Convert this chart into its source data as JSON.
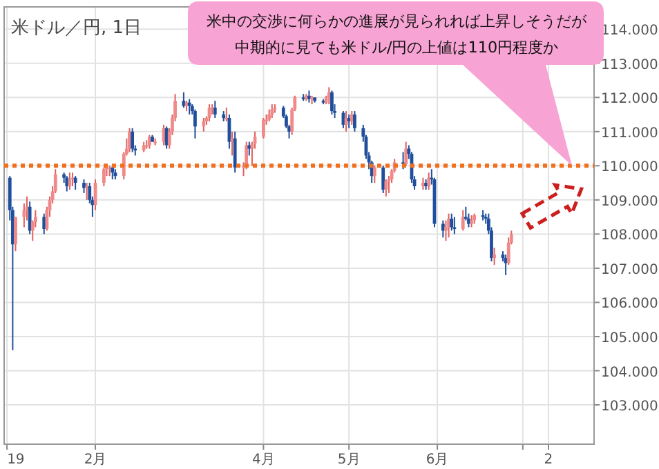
{
  "chart_data": {
    "type": "candlestick",
    "title": "米ドル／円, 1日",
    "annotations": [
      "米中の交渉に何らかの進展が見られれば上昇しそうだが",
      "中期的に見ても米ドル/円の上値は110円程度か"
    ],
    "xlim": [
      "2018-12-31",
      "2019-07-26"
    ],
    "xticks": [
      {
        "value": "2019-01-01",
        "label": "19"
      },
      {
        "value": "2019-02-01",
        "label": "2月"
      },
      {
        "value": "2019-04-01",
        "label": "4月"
      },
      {
        "value": "2019-05-01",
        "label": "5月"
      },
      {
        "value": "2019-06-01",
        "label": "6月"
      },
      {
        "value": "2019-07-01",
        "label": null
      },
      {
        "value": "2019-07-10",
        "label": "2"
      }
    ],
    "ylim": [
      101.85,
      114.65
    ],
    "yticks": [
      {
        "value": 103,
        "label": "103.000"
      },
      {
        "value": 104,
        "label": "104.000"
      },
      {
        "value": 105,
        "label": "105.000"
      },
      {
        "value": 106,
        "label": "106.000"
      },
      {
        "value": 107,
        "label": "107.000"
      },
      {
        "value": 108,
        "label": "108.000"
      },
      {
        "value": 109,
        "label": "109.000"
      },
      {
        "value": 110,
        "label": "110.000"
      },
      {
        "value": 111,
        "label": "111.000"
      },
      {
        "value": 112,
        "label": "112.000"
      },
      {
        "value": 113,
        "label": "113.000"
      },
      {
        "value": 114,
        "label": "114.000"
      }
    ],
    "grid": true,
    "ref_lines": [
      {
        "axis": "y",
        "value": 110,
        "color": "#f07020",
        "line_style": "dotted"
      }
    ],
    "x": [
      "2019-01-02",
      "2019-01-03",
      "2019-01-04",
      "2019-01-07",
      "2019-01-08",
      "2019-01-09",
      "2019-01-10",
      "2019-01-11",
      "2019-01-14",
      "2019-01-15",
      "2019-01-16",
      "2019-01-17",
      "2019-01-18",
      "2019-01-21",
      "2019-01-22",
      "2019-01-23",
      "2019-01-24",
      "2019-01-25",
      "2019-01-28",
      "2019-01-29",
      "2019-01-30",
      "2019-01-31",
      "2019-02-01",
      "2019-02-04",
      "2019-02-05",
      "2019-02-06",
      "2019-02-07",
      "2019-02-08",
      "2019-02-11",
      "2019-02-12",
      "2019-02-13",
      "2019-02-14",
      "2019-02-15",
      "2019-02-18",
      "2019-02-19",
      "2019-02-20",
      "2019-02-21",
      "2019-02-22",
      "2019-02-25",
      "2019-02-26",
      "2019-02-27",
      "2019-02-28",
      "2019-03-01",
      "2019-03-04",
      "2019-03-05",
      "2019-03-06",
      "2019-03-07",
      "2019-03-08",
      "2019-03-11",
      "2019-03-12",
      "2019-03-13",
      "2019-03-14",
      "2019-03-15",
      "2019-03-18",
      "2019-03-19",
      "2019-03-20",
      "2019-03-21",
      "2019-03-22",
      "2019-03-25",
      "2019-03-26",
      "2019-03-27",
      "2019-03-28",
      "2019-03-29",
      "2019-04-01",
      "2019-04-02",
      "2019-04-03",
      "2019-04-04",
      "2019-04-05",
      "2019-04-08",
      "2019-04-09",
      "2019-04-10",
      "2019-04-11",
      "2019-04-12",
      "2019-04-15",
      "2019-04-16",
      "2019-04-17",
      "2019-04-18",
      "2019-04-19",
      "2019-04-22",
      "2019-04-23",
      "2019-04-24",
      "2019-04-25",
      "2019-04-26",
      "2019-04-29",
      "2019-04-30",
      "2019-05-01",
      "2019-05-02",
      "2019-05-03",
      "2019-05-06",
      "2019-05-07",
      "2019-05-08",
      "2019-05-09",
      "2019-05-10",
      "2019-05-13",
      "2019-05-14",
      "2019-05-15",
      "2019-05-16",
      "2019-05-17",
      "2019-05-20",
      "2019-05-21",
      "2019-05-22",
      "2019-05-23",
      "2019-05-24",
      "2019-05-27",
      "2019-05-28",
      "2019-05-29",
      "2019-05-30",
      "2019-05-31",
      "2019-06-03",
      "2019-06-04",
      "2019-06-05",
      "2019-06-06",
      "2019-06-07",
      "2019-06-10",
      "2019-06-11",
      "2019-06-12",
      "2019-06-13",
      "2019-06-14",
      "2019-06-17",
      "2019-06-18",
      "2019-06-19",
      "2019-06-20",
      "2019-06-21",
      "2019-06-24",
      "2019-06-25",
      "2019-06-26",
      "2019-06-27"
    ],
    "ohlc": [
      [
        109.65,
        109.7,
        108.4,
        108.7
      ],
      [
        108.7,
        108.8,
        104.6,
        107.7
      ],
      [
        107.7,
        108.5,
        107.5,
        108.5
      ],
      [
        108.5,
        108.9,
        108.2,
        108.7
      ],
      [
        108.7,
        109.1,
        108.4,
        108.8
      ],
      [
        108.8,
        108.95,
        108.0,
        108.1
      ],
      [
        108.1,
        108.4,
        107.8,
        108.35
      ],
      [
        108.35,
        108.7,
        108.2,
        108.5
      ],
      [
        108.5,
        108.6,
        108.0,
        108.15
      ],
      [
        108.15,
        108.8,
        108.1,
        108.7
      ],
      [
        108.7,
        109.1,
        108.5,
        109.0
      ],
      [
        109.0,
        109.4,
        108.9,
        109.25
      ],
      [
        109.25,
        109.9,
        109.2,
        109.75
      ],
      [
        109.75,
        109.8,
        109.5,
        109.65
      ],
      [
        109.65,
        109.7,
        109.25,
        109.4
      ],
      [
        109.4,
        109.8,
        109.3,
        109.6
      ],
      [
        109.6,
        109.8,
        109.4,
        109.65
      ],
      [
        109.65,
        109.7,
        109.3,
        109.5
      ],
      [
        109.5,
        109.6,
        109.2,
        109.35
      ],
      [
        109.35,
        109.5,
        109.0,
        109.4
      ],
      [
        109.4,
        109.5,
        108.9,
        109.0
      ],
      [
        109.0,
        109.1,
        108.5,
        108.85
      ],
      [
        108.85,
        109.6,
        108.7,
        109.5
      ],
      [
        109.5,
        109.95,
        109.4,
        109.9
      ],
      [
        109.9,
        110.0,
        109.7,
        109.95
      ],
      [
        109.95,
        110.0,
        109.7,
        109.95
      ],
      [
        109.95,
        110.0,
        109.6,
        109.8
      ],
      [
        109.8,
        109.9,
        109.6,
        109.7
      ],
      [
        109.7,
        110.4,
        109.6,
        110.35
      ],
      [
        110.35,
        110.8,
        110.3,
        110.5
      ],
      [
        110.5,
        111.1,
        110.4,
        111.0
      ],
      [
        111.0,
        111.1,
        110.4,
        110.5
      ],
      [
        110.5,
        110.6,
        110.3,
        110.45
      ],
      [
        110.45,
        110.7,
        110.4,
        110.6
      ],
      [
        110.6,
        110.75,
        110.5,
        110.6
      ],
      [
        110.6,
        110.9,
        110.5,
        110.85
      ],
      [
        110.85,
        110.9,
        110.7,
        110.7
      ],
      [
        110.7,
        110.8,
        110.6,
        110.7
      ],
      [
        110.7,
        111.2,
        110.6,
        111.1
      ],
      [
        111.1,
        111.15,
        110.5,
        110.6
      ],
      [
        110.6,
        111.1,
        110.5,
        111.0
      ],
      [
        111.0,
        111.5,
        110.9,
        111.4
      ],
      [
        111.4,
        112.1,
        111.3,
        111.9
      ],
      [
        111.9,
        112.15,
        111.7,
        111.75
      ],
      [
        111.75,
        111.9,
        111.6,
        111.85
      ],
      [
        111.85,
        111.95,
        111.5,
        111.75
      ],
      [
        111.75,
        111.8,
        111.5,
        111.6
      ],
      [
        111.6,
        111.65,
        110.8,
        111.15
      ],
      [
        111.15,
        111.4,
        111.0,
        111.3
      ],
      [
        111.3,
        111.45,
        111.2,
        111.4
      ],
      [
        111.4,
        111.8,
        111.3,
        111.7
      ],
      [
        111.7,
        111.8,
        111.5,
        111.7
      ],
      [
        111.7,
        111.9,
        111.4,
        111.5
      ],
      [
        111.5,
        111.6,
        111.3,
        111.4
      ],
      [
        111.4,
        111.7,
        111.3,
        111.4
      ],
      [
        111.4,
        111.5,
        110.5,
        110.7
      ],
      [
        110.7,
        111.0,
        110.3,
        110.8
      ],
      [
        110.8,
        111.0,
        109.8,
        109.95
      ],
      [
        109.95,
        110.1,
        109.7,
        110.0
      ],
      [
        110.0,
        110.7,
        109.9,
        110.6
      ],
      [
        110.6,
        110.7,
        110.3,
        110.5
      ],
      [
        110.5,
        110.7,
        110.0,
        110.65
      ],
      [
        110.65,
        111.0,
        110.5,
        110.85
      ],
      [
        110.85,
        111.4,
        110.8,
        111.35
      ],
      [
        111.35,
        111.5,
        111.2,
        111.35
      ],
      [
        111.35,
        111.65,
        111.3,
        111.5
      ],
      [
        111.5,
        111.8,
        111.4,
        111.65
      ],
      [
        111.65,
        111.8,
        111.55,
        111.7
      ],
      [
        111.7,
        111.75,
        111.4,
        111.45
      ],
      [
        111.45,
        111.5,
        111.1,
        111.15
      ],
      [
        111.15,
        111.2,
        110.8,
        111.0
      ],
      [
        111.0,
        111.7,
        110.9,
        111.65
      ],
      [
        111.65,
        112.05,
        111.6,
        112.0
      ],
      [
        112.0,
        112.1,
        111.9,
        111.95
      ],
      [
        111.95,
        112.1,
        111.9,
        112.05
      ],
      [
        112.05,
        112.2,
        111.85,
        111.95
      ],
      [
        111.95,
        112.05,
        111.8,
        112.0
      ],
      [
        112.0,
        112.0,
        111.85,
        111.9
      ],
      [
        111.9,
        111.95,
        111.8,
        111.85
      ],
      [
        111.85,
        112.05,
        111.8,
        112.0
      ],
      [
        112.0,
        112.3,
        111.8,
        112.15
      ],
      [
        112.15,
        112.2,
        111.5,
        111.6
      ],
      [
        111.6,
        111.8,
        111.4,
        111.55
      ],
      [
        111.55,
        111.6,
        111.1,
        111.2
      ],
      [
        111.2,
        111.6,
        111.0,
        111.4
      ],
      [
        111.4,
        111.5,
        111.1,
        111.3
      ],
      [
        111.3,
        111.6,
        111.2,
        111.5
      ],
      [
        111.5,
        111.6,
        111.0,
        111.1
      ],
      [
        111.1,
        111.2,
        110.7,
        110.85
      ],
      [
        110.85,
        110.9,
        110.2,
        110.3
      ],
      [
        110.3,
        110.4,
        109.9,
        110.1
      ],
      [
        110.1,
        110.15,
        109.5,
        109.7
      ],
      [
        109.7,
        110.0,
        109.5,
        109.95
      ],
      [
        109.95,
        110.0,
        109.2,
        109.3
      ],
      [
        109.3,
        109.6,
        109.1,
        109.55
      ],
      [
        109.55,
        109.7,
        109.2,
        109.6
      ],
      [
        109.6,
        109.9,
        109.5,
        109.85
      ],
      [
        109.85,
        110.2,
        109.8,
        110.1
      ],
      [
        110.1,
        110.4,
        109.9,
        110.05
      ],
      [
        110.05,
        110.7,
        110.0,
        110.5
      ],
      [
        110.5,
        110.6,
        110.2,
        110.35
      ],
      [
        110.35,
        110.4,
        109.5,
        109.6
      ],
      [
        109.6,
        109.7,
        109.3,
        109.4
      ],
      [
        109.4,
        109.65,
        109.3,
        109.5
      ],
      [
        109.5,
        109.6,
        109.3,
        109.4
      ],
      [
        109.4,
        109.8,
        109.3,
        109.65
      ],
      [
        109.65,
        109.9,
        109.45,
        109.6
      ],
      [
        109.6,
        109.65,
        108.2,
        108.3
      ],
      [
        108.3,
        108.4,
        107.9,
        108.1
      ],
      [
        108.1,
        108.4,
        107.8,
        108.2
      ],
      [
        108.2,
        108.6,
        107.9,
        108.45
      ],
      [
        108.45,
        108.6,
        108.1,
        108.2
      ],
      [
        108.2,
        108.5,
        108.0,
        108.15
      ],
      [
        108.15,
        108.7,
        108.1,
        108.5
      ],
      [
        108.5,
        108.8,
        108.4,
        108.45
      ],
      [
        108.45,
        108.6,
        108.2,
        108.3
      ],
      [
        108.3,
        108.55,
        108.2,
        108.4
      ],
      [
        108.4,
        108.6,
        108.3,
        108.55
      ],
      [
        108.55,
        108.7,
        108.4,
        108.5
      ],
      [
        108.5,
        108.6,
        108.3,
        108.45
      ],
      [
        108.45,
        108.6,
        108.0,
        108.1
      ],
      [
        108.1,
        108.2,
        107.2,
        107.3
      ],
      [
        107.3,
        107.6,
        107.1,
        107.4
      ],
      [
        107.4,
        107.5,
        107.2,
        107.3
      ],
      [
        107.3,
        107.4,
        106.8,
        107.15
      ],
      [
        107.15,
        107.9,
        107.1,
        107.75
      ],
      [
        107.75,
        108.1,
        107.7,
        108.0
      ]
    ]
  }
}
